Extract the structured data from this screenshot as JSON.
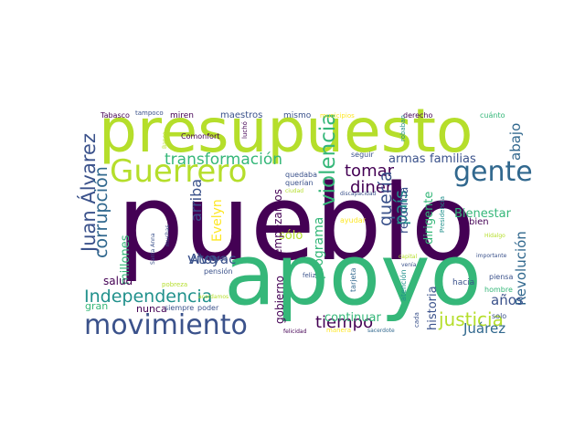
{
  "colors": {
    "dark_purple": "#440154",
    "indigo": "#3b528b",
    "blue": "#31688e",
    "teal": "#21918c",
    "green": "#35b779",
    "lime": "#b5de2b",
    "yellow": "#fde725"
  },
  "words": [
    {
      "text": "pueblo",
      "color": "#440154"
    },
    {
      "text": "apoyo",
      "color": "#35b779"
    },
    {
      "text": "presupuesto",
      "color": "#b5de2b"
    },
    {
      "text": "movimiento",
      "color": "#3b528b"
    },
    {
      "text": "Guerrero",
      "color": "#b5de2b"
    },
    {
      "text": "gente",
      "color": "#31688e"
    },
    {
      "text": "Independencia",
      "color": "#21918c"
    },
    {
      "text": "Juan Álvarez",
      "color": "#3b528b"
    },
    {
      "text": "transformación",
      "color": "#35b779"
    },
    {
      "text": "Atoyac",
      "color": "#3b528b"
    },
    {
      "text": "tiempo",
      "color": "#440154"
    },
    {
      "text": "justicia",
      "color": "#b5de2b"
    },
    {
      "text": "violencia",
      "color": "#35b779"
    },
    {
      "text": "corrupción",
      "color": "#31688e"
    },
    {
      "text": "tomar",
      "color": "#440154"
    },
    {
      "text": "dinero",
      "color": "#440154"
    },
    {
      "text": "país",
      "color": "#21918c"
    },
    {
      "text": "quería",
      "color": "#3b528b"
    },
    {
      "text": "Revolución",
      "color": "#31688e"
    },
    {
      "text": "Bienestar",
      "color": "#35b779"
    },
    {
      "text": "abajo",
      "color": "#31688e"
    },
    {
      "text": "armas",
      "color": "#3b528b"
    },
    {
      "text": "familias",
      "color": "#3b528b"
    },
    {
      "text": "Juárez",
      "color": "#31688e"
    },
    {
      "text": "años",
      "color": "#3b528b"
    },
    {
      "text": "arriba",
      "color": "#3b528b"
    },
    {
      "text": "viva",
      "color": "#3b528b"
    },
    {
      "text": "Evelyn",
      "color": "#fde725"
    },
    {
      "text": "millones",
      "color": "#35b779"
    },
    {
      "text": "sólo",
      "color": "#b5de2b"
    },
    {
      "text": "empezamos",
      "color": "#440154"
    },
    {
      "text": "programa",
      "color": "#35b779"
    },
    {
      "text": "reforma",
      "color": "#3b528b"
    },
    {
      "text": "dirigente",
      "color": "#35b779"
    },
    {
      "text": "historia",
      "color": "#3b528b"
    },
    {
      "text": "continuar",
      "color": "#35b779"
    },
    {
      "text": "gobierno",
      "color": "#440154"
    },
    {
      "text": "salud",
      "color": "#440154"
    },
    {
      "text": "gran",
      "color": "#35b779"
    },
    {
      "text": "nunca",
      "color": "#440154"
    },
    {
      "text": "bien",
      "color": "#440154"
    },
    {
      "text": "maestros",
      "color": "#3b528b"
    },
    {
      "text": "mismo",
      "color": "#3b528b"
    },
    {
      "text": "derecho",
      "color": "#440154"
    },
    {
      "text": "miren",
      "color": "#440154"
    },
    {
      "text": "Tabasco",
      "color": "#440154"
    },
    {
      "text": "tampoco",
      "color": "#3b528b"
    },
    {
      "text": "municipios",
      "color": "#fde725"
    },
    {
      "text": "cuánto",
      "color": "#35b779"
    },
    {
      "text": "Comonfort",
      "color": "#440154"
    },
    {
      "text": "luchó",
      "color": "#440154"
    },
    {
      "text": "seguir",
      "color": "#3b528b"
    },
    {
      "text": "quedaba",
      "color": "#3b528b"
    },
    {
      "text": "querían",
      "color": "#3b528b"
    },
    {
      "text": "ciudad",
      "color": "#b5de2b"
    },
    {
      "text": "discapacidad",
      "color": "#3b528b"
    },
    {
      "text": "robaban",
      "color": "#21918c"
    },
    {
      "text": "hacia",
      "color": "#3b528b"
    },
    {
      "text": "piensa",
      "color": "#3b528b"
    },
    {
      "text": "hombre",
      "color": "#35b779"
    },
    {
      "text": "solo",
      "color": "#3b528b"
    },
    {
      "text": "pensión",
      "color": "#3b528b"
    },
    {
      "text": "poder",
      "color": "#3b528b"
    },
    {
      "text": "siempre",
      "color": "#3b528b"
    },
    {
      "text": "veces",
      "color": "#3b528b"
    },
    {
      "text": "pobreza",
      "color": "#b5de2b"
    },
    {
      "text": "acordamos",
      "color": "#b5de2b"
    },
    {
      "text": "ayudar",
      "color": "#fde725"
    },
    {
      "text": "capital",
      "color": "#b5de2b"
    },
    {
      "text": "venía",
      "color": "#3b528b"
    },
    {
      "text": "importante",
      "color": "#3b528b"
    },
    {
      "text": "feliz",
      "color": "#3b528b"
    },
    {
      "text": "tarjeta",
      "color": "#31688e"
    },
    {
      "text": "atención",
      "color": "#21918c"
    },
    {
      "text": "cada",
      "color": "#3b528b"
    },
    {
      "text": "felicidad",
      "color": "#440154"
    },
    {
      "text": "manera",
      "color": "#fde725"
    },
    {
      "text": "sacerdote",
      "color": "#31688e"
    },
    {
      "text": "Santa Anna",
      "color": "#3b528b"
    },
    {
      "text": "muchas",
      "color": "#3b528b"
    },
    {
      "text": "Banco",
      "color": "#b5de2b"
    },
    {
      "text": "Presidencia",
      "color": "#21918c"
    },
    {
      "text": "Hidalgo",
      "color": "#b5de2b"
    }
  ]
}
